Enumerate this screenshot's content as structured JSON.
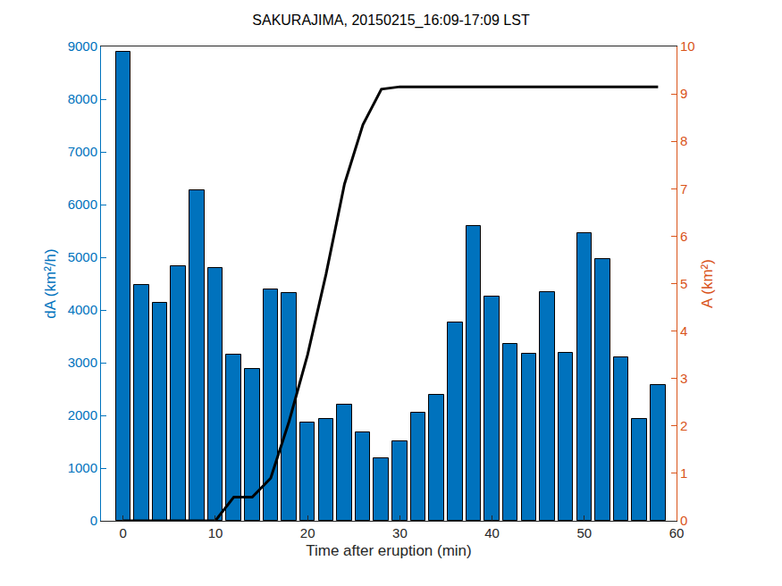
{
  "chart_data": {
    "type": "bar",
    "title": "SAKURAJIMA, 20150215_16:09-17:09 LST",
    "x_label": "Time after eruption (min)",
    "y_label": "dA (km²/h)",
    "y2_label": "A (km²)",
    "x": [
      0,
      2,
      4,
      6,
      8,
      10,
      12,
      14,
      16,
      18,
      20,
      22,
      24,
      26,
      28,
      30,
      32,
      34,
      36,
      38,
      40,
      42,
      44,
      46,
      48,
      50,
      52,
      54,
      56,
      58
    ],
    "series": [
      {
        "name": "dA",
        "type": "bar",
        "color": "#0072bd",
        "values": [
          8900,
          4470,
          4140,
          4830,
          6270,
          4800,
          3160,
          2880,
          4390,
          4330,
          1860,
          1940,
          2200,
          1680,
          1180,
          1510,
          2050,
          2390,
          3770,
          5600,
          4250,
          3350,
          3170,
          4340,
          3180,
          5450,
          4970,
          3110,
          1930,
          2580
        ]
      },
      {
        "name": "A",
        "type": "line",
        "color": "#000000",
        "axis": "y2",
        "values": [
          0,
          0,
          0,
          0,
          0,
          0,
          0.5,
          0.5,
          0.9,
          2.1,
          3.5,
          5.2,
          7.1,
          8.35,
          9.1,
          9.15,
          9.15,
          9.15,
          9.15,
          9.15,
          9.15,
          9.15,
          9.15,
          9.15,
          9.15,
          9.15,
          9.15,
          9.15,
          9.15,
          9.15
        ]
      }
    ],
    "xlim": [
      -2.4,
      60
    ],
    "xticks": [
      0,
      10,
      20,
      30,
      40,
      50,
      60
    ],
    "ylim": [
      0,
      9000
    ],
    "yticks": [
      0,
      1000,
      2000,
      3000,
      4000,
      5000,
      6000,
      7000,
      8000,
      9000
    ],
    "y2lim": [
      0,
      10
    ],
    "y2ticks": [
      0,
      1,
      2,
      3,
      4,
      5,
      6,
      7,
      8,
      9,
      10
    ],
    "grid": false
  }
}
